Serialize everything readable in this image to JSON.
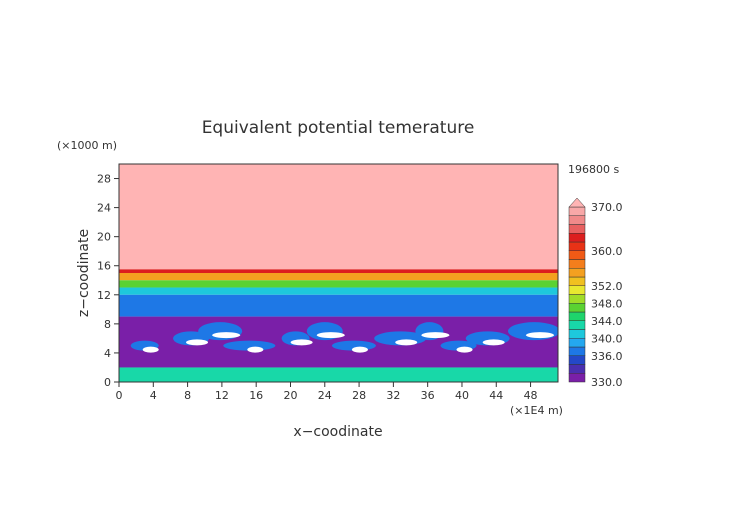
{
  "chart_data": {
    "type": "heatmap",
    "title": "Equivalent potential temerature",
    "xlabel": "x−coodinate",
    "ylabel": "z−coodinate",
    "x_unit": "(×1E4 m)",
    "y_unit": "(×1000 m)",
    "time_label": "196800 s",
    "xlim": [
      0,
      51.2
    ],
    "ylim": [
      0,
      30
    ],
    "x_ticks": [
      "0",
      "4",
      "8",
      "12",
      "16",
      "20",
      "24",
      "28",
      "32",
      "36",
      "40",
      "44",
      "48"
    ],
    "y_ticks": [
      "0",
      "4",
      "8",
      "12",
      "16",
      "20",
      "24",
      "28"
    ],
    "colorbar": {
      "levels": [
        330,
        332,
        334,
        336,
        338,
        340,
        342,
        344,
        346,
        348,
        350,
        352,
        354,
        356,
        358,
        360,
        362,
        364,
        366,
        368,
        370
      ],
      "labels": [
        "330.0",
        "336.0",
        "340.0",
        "344.0",
        "348.0",
        "352.0",
        "360.0",
        "370.0"
      ],
      "colors": [
        "#7a1fa8",
        "#4a2fb0",
        "#2448c8",
        "#1e78e6",
        "#24a8f0",
        "#1ec8dc",
        "#18d8a8",
        "#1ed46c",
        "#5ad232",
        "#a0dc28",
        "#e8e830",
        "#f0c020",
        "#f4a020",
        "#f47e1c",
        "#f05a16",
        "#e83216",
        "#dc1e1e",
        "#e86060",
        "#f08a8a",
        "#f8a8a8",
        "#ffb4b4"
      ]
    },
    "field_description_bands": [
      {
        "z_range": [
          15.5,
          30
        ],
        "theta_e": 370
      },
      {
        "z_range": [
          15,
          15.5
        ],
        "theta_e": 362
      },
      {
        "z_range": [
          14,
          15
        ],
        "theta_e": 354
      },
      {
        "z_range": [
          13,
          14
        ],
        "theta_e": 346
      },
      {
        "z_range": [
          12,
          13
        ],
        "theta_e": 340
      },
      {
        "z_range": [
          9,
          12
        ],
        "theta_e": 336
      },
      {
        "z_range": [
          2,
          9
        ],
        "theta_e": 330
      },
      {
        "z_range": [
          0,
          2
        ],
        "theta_e": 342
      }
    ]
  }
}
